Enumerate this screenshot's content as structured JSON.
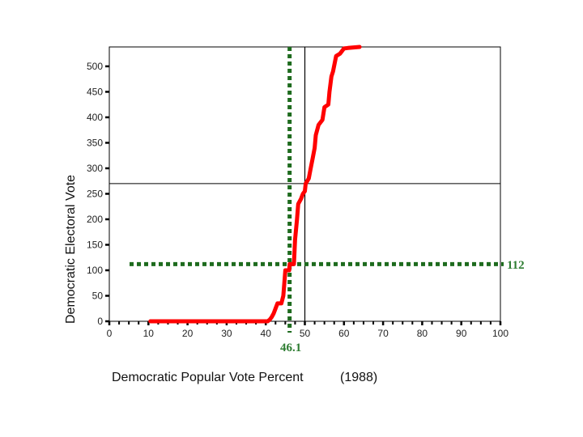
{
  "chart_data": {
    "type": "line",
    "xlabel": "Democratic Popular Vote Percent",
    "xlabel_suffix": "(1988)",
    "ylabel": "Democratic Electoral Vote",
    "xlim": [
      0,
      100
    ],
    "ylim": [
      0,
      538
    ],
    "x_ticks": [
      0,
      10,
      20,
      30,
      40,
      50,
      60,
      70,
      80,
      90,
      100
    ],
    "y_ticks": [
      0,
      50,
      100,
      150,
      200,
      250,
      300,
      350,
      400,
      450,
      500
    ],
    "grid": false,
    "series": [
      {
        "color": "#ff0000",
        "points": [
          [
            10.5,
            0
          ],
          [
            40.5,
            0
          ],
          [
            41,
            3
          ],
          [
            41.5,
            8
          ],
          [
            42,
            15
          ],
          [
            42.5,
            25
          ],
          [
            43,
            35
          ],
          [
            44,
            35
          ],
          [
            44.5,
            50
          ],
          [
            45,
            100
          ],
          [
            46,
            100
          ],
          [
            46.1,
            112
          ],
          [
            47.2,
            112
          ],
          [
            47.5,
            160
          ],
          [
            48,
            200
          ],
          [
            48.3,
            230
          ],
          [
            49,
            240
          ],
          [
            49.5,
            250
          ],
          [
            50,
            255
          ],
          [
            50.2,
            270
          ],
          [
            51,
            280
          ],
          [
            51.5,
            300
          ],
          [
            52,
            320
          ],
          [
            52.5,
            340
          ],
          [
            52.8,
            365
          ],
          [
            53.5,
            385
          ],
          [
            54.5,
            395
          ],
          [
            55,
            420
          ],
          [
            56,
            425
          ],
          [
            56.3,
            450
          ],
          [
            56.8,
            480
          ],
          [
            57.2,
            490
          ],
          [
            58,
            520
          ],
          [
            59,
            525
          ],
          [
            60,
            535
          ],
          [
            61,
            536
          ],
          [
            64,
            538
          ]
        ]
      }
    ],
    "reference_lines": {
      "vertical_solid_x": 50,
      "horizontal_solid_y": 270,
      "vertical_dotted_x": 46.1,
      "horizontal_dotted_y": 112
    },
    "annotations": [
      {
        "text": "46.1",
        "color": "#2e7d32"
      },
      {
        "text": "112",
        "color": "#2e7d32"
      }
    ],
    "colors": {
      "curve": "#ff0000",
      "dotted": "#1e6b1e",
      "frame": "#000000"
    }
  }
}
